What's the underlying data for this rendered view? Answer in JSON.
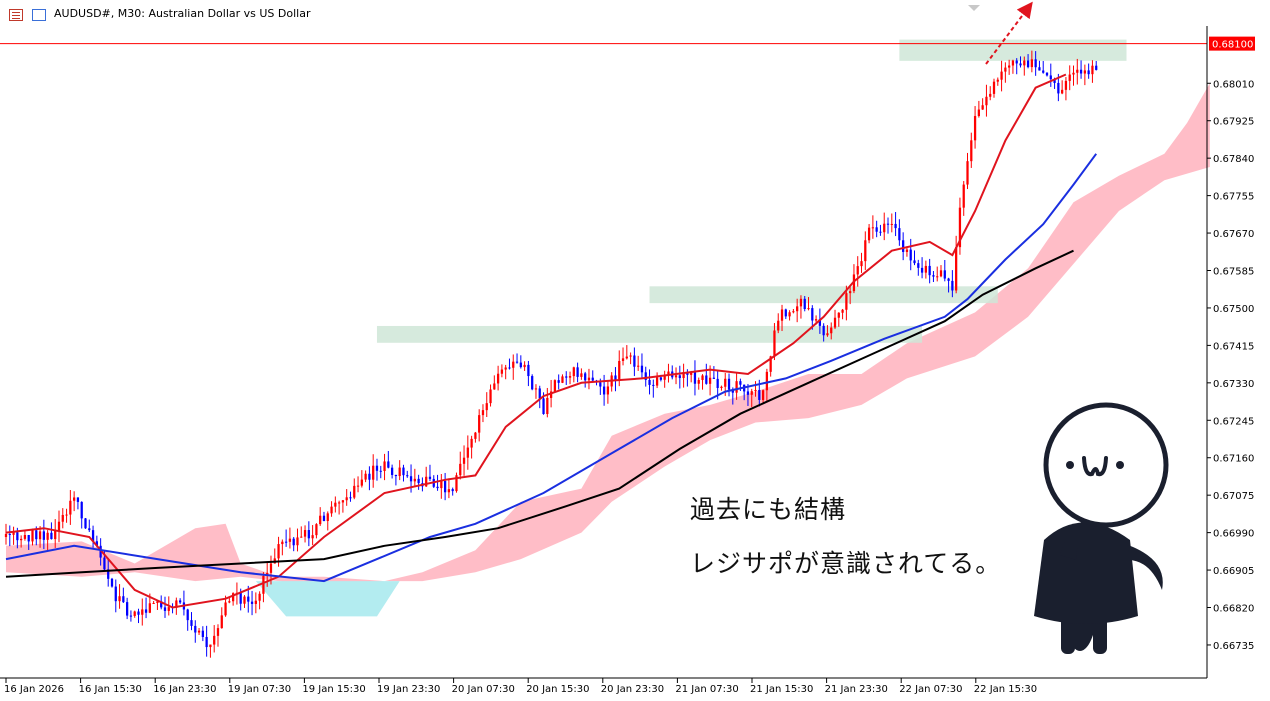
{
  "window": {
    "title": "AUDUSD#, M30:  Australian Dollar vs US Dollar"
  },
  "annotation": {
    "line1": "過去にも結構",
    "line2": "レジサポが意識されてる。"
  },
  "colors": {
    "bull_candle": "#ff0000",
    "bear_candle": "#0000ff",
    "ma_fast": "#e0141e",
    "ma_mid": "#1a2fe0",
    "ma_slow": "#000000",
    "cloud_bull": "#ffb6c1",
    "cloud_bear": "#b3ecf0",
    "sr_zone": "#cfe6d7",
    "price_line": "#ff0000"
  },
  "chart_data": {
    "type": "candlestick",
    "symbol": "AUDUSD#",
    "timeframe": "M30",
    "y_ticks": [
      0.6801,
      0.67925,
      0.6784,
      0.67755,
      0.6767,
      0.67585,
      0.675,
      0.67415,
      0.6733,
      0.67245,
      0.6716,
      0.67075,
      0.6699,
      0.66905,
      0.6682,
      0.66735
    ],
    "y_tick_labels": [
      "0.68010",
      "0.67925",
      "0.67840",
      "0.67755",
      "0.67670",
      "0.67585",
      "0.67500",
      "0.67415",
      "0.67330",
      "0.67245",
      "0.67160",
      "0.67075",
      "0.66990",
      "0.66905",
      "0.66820",
      "0.66735"
    ],
    "ylim": [
      0.6666,
      0.6814
    ],
    "x_labels": [
      "16 Jan 2026",
      "16 Jan 15:30",
      "16 Jan 23:30",
      "19 Jan 07:30",
      "19 Jan 15:30",
      "19 Jan 23:30",
      "20 Jan 07:30",
      "20 Jan 15:30",
      "20 Jan 23:30",
      "21 Jan 07:30",
      "21 Jan 15:30",
      "21 Jan 23:30",
      "22 Jan 07:30",
      "22 Jan 15:30"
    ],
    "current_price": 0.681,
    "current_price_label": "0.68100",
    "x_bars": 290,
    "candle_keypoints": [
      [
        0,
        0.6698
      ],
      [
        12,
        0.6699
      ],
      [
        18,
        0.6707
      ],
      [
        22,
        0.6699
      ],
      [
        28,
        0.6686
      ],
      [
        32,
        0.6681
      ],
      [
        40,
        0.6682
      ],
      [
        46,
        0.6684
      ],
      [
        50,
        0.6676
      ],
      [
        54,
        0.6673
      ],
      [
        58,
        0.6684
      ],
      [
        66,
        0.6684
      ],
      [
        72,
        0.6696
      ],
      [
        80,
        0.6699
      ],
      [
        88,
        0.6706
      ],
      [
        98,
        0.6714
      ],
      [
        104,
        0.6713
      ],
      [
        112,
        0.671
      ],
      [
        118,
        0.6709
      ],
      [
        124,
        0.6722
      ],
      [
        130,
        0.6736
      ],
      [
        136,
        0.6738
      ],
      [
        142,
        0.6727
      ],
      [
        146,
        0.6734
      ],
      [
        152,
        0.6736
      ],
      [
        158,
        0.673
      ],
      [
        164,
        0.674
      ],
      [
        170,
        0.6733
      ],
      [
        178,
        0.6735
      ],
      [
        186,
        0.6733
      ],
      [
        194,
        0.6732
      ],
      [
        200,
        0.673
      ],
      [
        204,
        0.6748
      ],
      [
        210,
        0.6751
      ],
      [
        216,
        0.6744
      ],
      [
        222,
        0.6752
      ],
      [
        228,
        0.6767
      ],
      [
        234,
        0.6769
      ],
      [
        240,
        0.6759
      ],
      [
        246,
        0.6758
      ],
      [
        250,
        0.6755
      ],
      [
        252,
        0.6772
      ],
      [
        256,
        0.6794
      ],
      [
        262,
        0.6802
      ],
      [
        266,
        0.6806
      ],
      [
        272,
        0.6805
      ],
      [
        278,
        0.68
      ],
      [
        284,
        0.6804
      ],
      [
        288,
        0.6805
      ]
    ],
    "moving_averages": [
      {
        "name": "fast",
        "values": [
          [
            0,
            0.6699
          ],
          [
            10,
            0.67
          ],
          [
            22,
            0.6698
          ],
          [
            34,
            0.6686
          ],
          [
            44,
            0.6682
          ],
          [
            58,
            0.6684
          ],
          [
            72,
            0.6689
          ],
          [
            84,
            0.6698
          ],
          [
            100,
            0.6708
          ],
          [
            116,
            0.6711
          ],
          [
            124,
            0.6712
          ],
          [
            132,
            0.6723
          ],
          [
            142,
            0.673
          ],
          [
            152,
            0.6733
          ],
          [
            168,
            0.6734
          ],
          [
            186,
            0.6736
          ],
          [
            196,
            0.6735
          ],
          [
            208,
            0.6742
          ],
          [
            216,
            0.6748
          ],
          [
            224,
            0.6756
          ],
          [
            234,
            0.6763
          ],
          [
            244,
            0.6765
          ],
          [
            250,
            0.6762
          ],
          [
            256,
            0.6772
          ],
          [
            264,
            0.6788
          ],
          [
            272,
            0.68
          ],
          [
            280,
            0.6803
          ]
        ]
      },
      {
        "name": "mid",
        "values": [
          [
            0,
            0.6693
          ],
          [
            18,
            0.6696
          ],
          [
            40,
            0.6693
          ],
          [
            62,
            0.669
          ],
          [
            84,
            0.6688
          ],
          [
            98,
            0.6693
          ],
          [
            112,
            0.6698
          ],
          [
            124,
            0.6701
          ],
          [
            142,
            0.6708
          ],
          [
            160,
            0.6717
          ],
          [
            176,
            0.6725
          ],
          [
            190,
            0.6731
          ],
          [
            206,
            0.6734
          ],
          [
            218,
            0.6738
          ],
          [
            232,
            0.6743
          ],
          [
            248,
            0.6748
          ],
          [
            254,
            0.6752
          ],
          [
            264,
            0.6761
          ],
          [
            274,
            0.6769
          ],
          [
            282,
            0.6778
          ],
          [
            288,
            0.6785
          ]
        ]
      },
      {
        "name": "slow",
        "values": [
          [
            0,
            0.6689
          ],
          [
            20,
            0.669
          ],
          [
            40,
            0.6691
          ],
          [
            62,
            0.6692
          ],
          [
            84,
            0.6693
          ],
          [
            100,
            0.6696
          ],
          [
            116,
            0.6698
          ],
          [
            130,
            0.67
          ],
          [
            148,
            0.6705
          ],
          [
            162,
            0.6709
          ],
          [
            178,
            0.6718
          ],
          [
            194,
            0.6726
          ],
          [
            212,
            0.6733
          ],
          [
            230,
            0.674
          ],
          [
            248,
            0.6747
          ],
          [
            258,
            0.6753
          ],
          [
            272,
            0.6759
          ],
          [
            282,
            0.6763
          ]
        ]
      }
    ],
    "cloud": {
      "upper": [
        [
          0,
          0.6696
        ],
        [
          20,
          0.6697
        ],
        [
          34,
          0.6692
        ],
        [
          50,
          0.67
        ],
        [
          58,
          0.6701
        ],
        [
          62,
          0.6692
        ],
        [
          72,
          0.6689
        ],
        [
          84,
          0.6689
        ],
        [
          100,
          0.6688
        ],
        [
          110,
          0.669
        ],
        [
          124,
          0.6695
        ],
        [
          136,
          0.6706
        ],
        [
          152,
          0.6709
        ],
        [
          160,
          0.6721
        ],
        [
          174,
          0.6726
        ],
        [
          186,
          0.6728
        ],
        [
          198,
          0.6731
        ],
        [
          212,
          0.6735
        ],
        [
          226,
          0.6735
        ],
        [
          238,
          0.6742
        ],
        [
          256,
          0.6749
        ],
        [
          270,
          0.6759
        ],
        [
          282,
          0.6774
        ],
        [
          294,
          0.678
        ],
        [
          306,
          0.6785
        ],
        [
          312,
          0.6792
        ],
        [
          318,
          0.6801
        ]
      ],
      "lower": [
        [
          0,
          0.669
        ],
        [
          20,
          0.6689
        ],
        [
          34,
          0.669
        ],
        [
          50,
          0.6688
        ],
        [
          62,
          0.6689
        ],
        [
          72,
          0.6688
        ],
        [
          84,
          0.6687
        ],
        [
          100,
          0.6688
        ],
        [
          110,
          0.6688
        ],
        [
          124,
          0.669
        ],
        [
          136,
          0.6693
        ],
        [
          152,
          0.6699
        ],
        [
          160,
          0.6706
        ],
        [
          174,
          0.6714
        ],
        [
          186,
          0.672
        ],
        [
          198,
          0.6724
        ],
        [
          212,
          0.6725
        ],
        [
          226,
          0.6728
        ],
        [
          238,
          0.6734
        ],
        [
          256,
          0.6739
        ],
        [
          270,
          0.6748
        ],
        [
          282,
          0.676
        ],
        [
          294,
          0.6772
        ],
        [
          306,
          0.6779
        ],
        [
          318,
          0.6782
        ]
      ],
      "bear_zone": {
        "x_from": 66,
        "x_to": 104,
        "upper": 0.6688,
        "lower": 0.668
      }
    },
    "sr_zones": [
      {
        "x_from": 98,
        "x_to": 242,
        "y_low": 0.6743,
        "y_high": 0.6745
      },
      {
        "x_from": 170,
        "x_to": 262,
        "y_low": 0.6752,
        "y_high": 0.6754
      },
      {
        "x_from": 236,
        "x_to": 296,
        "y_low": 0.6807,
        "y_high": 0.681
      }
    ],
    "grid": false,
    "legend": "none"
  }
}
